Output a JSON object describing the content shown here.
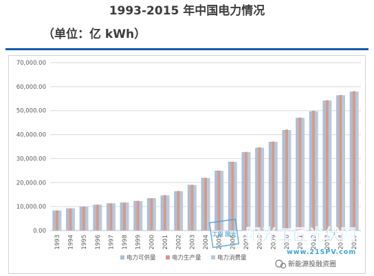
{
  "header": {
    "title": "1993-2015 年中国电力情况",
    "subtitle": "（单位：亿 kWh）"
  },
  "colors": {
    "rule": "#0d5aa7",
    "series": [
      "#a9bfd7",
      "#d59b8a",
      "#b7c9df"
    ]
  },
  "watermark": {
    "stamp_text": "工程 国光",
    "brand": "阳光工匠光伏网",
    "url": "www.21SPV.com",
    "wechat": "新能源投融资圈"
  },
  "chart_data": {
    "type": "bar",
    "categories": [
      "1993",
      "1994",
      "1995",
      "1996",
      "1997",
      "1998",
      "1999",
      "2000",
      "2001",
      "2002",
      "2003",
      "2004",
      "2005",
      "2006",
      "2007",
      "2008",
      "2009",
      "2010",
      "2011",
      "2012",
      "2013",
      "2014",
      "2015"
    ],
    "series": [
      {
        "name": "电力可供量",
        "values": [
          8400,
          9300,
          10000,
          10800,
          11400,
          11700,
          12400,
          13500,
          14700,
          16400,
          19100,
          22000,
          25000,
          28700,
          32700,
          34500,
          37000,
          41900,
          47000,
          49700,
          54200,
          56400,
          57900
        ]
      },
      {
        "name": "电力生产量",
        "values": [
          8400,
          9300,
          10000,
          10800,
          11400,
          11700,
          12400,
          13500,
          14800,
          16500,
          19100,
          22000,
          25000,
          28700,
          32800,
          34700,
          37100,
          42100,
          47100,
          49900,
          54300,
          56500,
          58100
        ]
      },
      {
        "name": "电力消费量",
        "values": [
          8400,
          9300,
          10000,
          10800,
          11400,
          11700,
          12300,
          13500,
          14700,
          16400,
          19000,
          21900,
          24900,
          28600,
          32700,
          34500,
          37000,
          41900,
          47000,
          49700,
          54200,
          56400,
          57900
        ]
      }
    ],
    "yticks": [
      "0.00",
      "10,000.00",
      "20,000.00",
      "30,000.00",
      "40,000.00",
      "50,000.00",
      "60,000.00",
      "70,000.00"
    ],
    "ylim": [
      0,
      70000
    ],
    "grid": true,
    "legend": "bottom"
  }
}
